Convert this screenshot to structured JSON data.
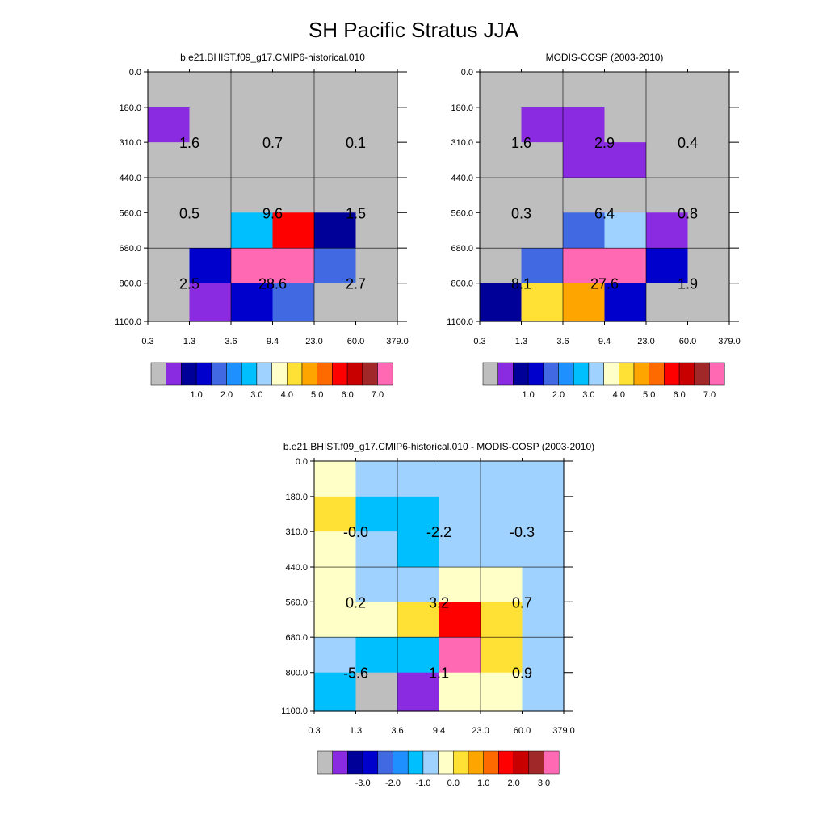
{
  "figure_title": "SH Pacific Stratus JJA",
  "chart_data": [
    {
      "type": "heatmap",
      "title": "b.e21.BHIST.f09_g17.CMIP6-historical.010",
      "x_ticks": [
        "0.3",
        "1.3",
        "3.6",
        "9.4",
        "23.0",
        "60.0",
        "379.0"
      ],
      "y_ticks": [
        "0.0",
        "180.0",
        "310.0",
        "440.0",
        "560.0",
        "680.0",
        "800.0",
        "1100.0"
      ],
      "cell_colors": [
        [
          "#BEBEBE",
          "#BEBEBE",
          "#BEBEBE",
          "#BEBEBE",
          "#BEBEBE",
          "#BEBEBE"
        ],
        [
          "#8A2BE2",
          "#BEBEBE",
          "#BEBEBE",
          "#BEBEBE",
          "#BEBEBE",
          "#BEBEBE"
        ],
        [
          "#BEBEBE",
          "#BEBEBE",
          "#BEBEBE",
          "#BEBEBE",
          "#BEBEBE",
          "#BEBEBE"
        ],
        [
          "#BEBEBE",
          "#BEBEBE",
          "#BEBEBE",
          "#BEBEBE",
          "#BEBEBE",
          "#BEBEBE"
        ],
        [
          "#BEBEBE",
          "#BEBEBE",
          "#00BFFF",
          "#FF0000",
          "#000099",
          "#BEBEBE"
        ],
        [
          "#BEBEBE",
          "#0000CD",
          "#FF69B4",
          "#FF69B4",
          "#4169E1",
          "#BEBEBE"
        ],
        [
          "#BEBEBE",
          "#8A2BE2",
          "#0000CD",
          "#4169E1",
          "#BEBEBE",
          "#BEBEBE"
        ]
      ],
      "box_values": [
        [
          "1.6",
          "0.7",
          "0.1"
        ],
        [
          "0.5",
          "9.6",
          "1.5"
        ],
        [
          "2.5",
          "28.6",
          "2.7"
        ]
      ],
      "colorbar": {
        "colors": [
          "#BEBEBE",
          "#8A2BE2",
          "#000099",
          "#0000CD",
          "#4169E1",
          "#1E90FF",
          "#00BFFF",
          "#A0D2FF",
          "#FFFFC8",
          "#FFE135",
          "#FFA500",
          "#FF6A00",
          "#FF0000",
          "#C80000",
          "#A02828",
          "#FF69B4"
        ],
        "labels": [
          "1.0",
          "2.0",
          "3.0",
          "4.0",
          "5.0",
          "6.0",
          "7.0"
        ]
      }
    },
    {
      "type": "heatmap",
      "title": "MODIS-COSP (2003-2010)",
      "x_ticks": [
        "0.3",
        "1.3",
        "3.6",
        "9.4",
        "23.0",
        "60.0",
        "379.0"
      ],
      "y_ticks": [
        "0.0",
        "180.0",
        "310.0",
        "440.0",
        "560.0",
        "680.0",
        "800.0",
        "1100.0"
      ],
      "cell_colors": [
        [
          "#BEBEBE",
          "#BEBEBE",
          "#BEBEBE",
          "#BEBEBE",
          "#BEBEBE",
          "#BEBEBE"
        ],
        [
          "#BEBEBE",
          "#8A2BE2",
          "#8A2BE2",
          "#BEBEBE",
          "#BEBEBE",
          "#BEBEBE"
        ],
        [
          "#BEBEBE",
          "#BEBEBE",
          "#8A2BE2",
          "#8A2BE2",
          "#BEBEBE",
          "#BEBEBE"
        ],
        [
          "#BEBEBE",
          "#BEBEBE",
          "#BEBEBE",
          "#BEBEBE",
          "#BEBEBE",
          "#BEBEBE"
        ],
        [
          "#BEBEBE",
          "#BEBEBE",
          "#4169E1",
          "#A0D2FF",
          "#8A2BE2",
          "#BEBEBE"
        ],
        [
          "#BEBEBE",
          "#4169E1",
          "#FF69B4",
          "#FF69B4",
          "#0000CD",
          "#BEBEBE"
        ],
        [
          "#000099",
          "#FFE135",
          "#FFA500",
          "#0000CD",
          "#BEBEBE",
          "#BEBEBE"
        ]
      ],
      "box_values": [
        [
          "1.6",
          "2.9",
          "0.4"
        ],
        [
          "0.3",
          "6.4",
          "0.8"
        ],
        [
          "8.1",
          "27.6",
          "1.9"
        ]
      ],
      "colorbar": {
        "colors": [
          "#BEBEBE",
          "#8A2BE2",
          "#000099",
          "#0000CD",
          "#4169E1",
          "#1E90FF",
          "#00BFFF",
          "#A0D2FF",
          "#FFFFC8",
          "#FFE135",
          "#FFA500",
          "#FF6A00",
          "#FF0000",
          "#C80000",
          "#A02828",
          "#FF69B4"
        ],
        "labels": [
          "1.0",
          "2.0",
          "3.0",
          "4.0",
          "5.0",
          "6.0",
          "7.0"
        ]
      }
    },
    {
      "type": "heatmap",
      "title": "b.e21.BHIST.f09_g17.CMIP6-historical.010 - MODIS-COSP (2003-2010)",
      "x_ticks": [
        "0.3",
        "1.3",
        "3.6",
        "9.4",
        "23.0",
        "60.0",
        "379.0"
      ],
      "y_ticks": [
        "0.0",
        "180.0",
        "310.0",
        "440.0",
        "560.0",
        "680.0",
        "800.0",
        "1100.0"
      ],
      "cell_colors": [
        [
          "#FFFFC8",
          "#A0D2FF",
          "#A0D2FF",
          "#A0D2FF",
          "#A0D2FF",
          "#A0D2FF"
        ],
        [
          "#FFE135",
          "#00BFFF",
          "#00BFFF",
          "#A0D2FF",
          "#A0D2FF",
          "#A0D2FF"
        ],
        [
          "#FFFFC8",
          "#A0D2FF",
          "#00BFFF",
          "#A0D2FF",
          "#A0D2FF",
          "#A0D2FF"
        ],
        [
          "#FFFFC8",
          "#A0D2FF",
          "#A0D2FF",
          "#FFFFC8",
          "#FFFFC8",
          "#A0D2FF"
        ],
        [
          "#FFFFC8",
          "#FFFFC8",
          "#FFE135",
          "#FF0000",
          "#FFE135",
          "#A0D2FF"
        ],
        [
          "#A0D2FF",
          "#00BFFF",
          "#00BFFF",
          "#FF69B4",
          "#FFE135",
          "#A0D2FF"
        ],
        [
          "#00BFFF",
          "#BEBEBE",
          "#8A2BE2",
          "#FFFFC8",
          "#FFFFC8",
          "#A0D2FF"
        ]
      ],
      "box_values": [
        [
          "-0.0",
          "-2.2",
          "-0.3"
        ],
        [
          "0.2",
          "3.2",
          "0.7"
        ],
        [
          "-5.6",
          "1.1",
          "0.9"
        ]
      ],
      "colorbar": {
        "colors": [
          "#BEBEBE",
          "#8A2BE2",
          "#000099",
          "#0000CD",
          "#4169E1",
          "#1E90FF",
          "#00BFFF",
          "#A0D2FF",
          "#FFFFC8",
          "#FFE135",
          "#FFA500",
          "#FF6A00",
          "#FF0000",
          "#C80000",
          "#A02828",
          "#FF69B4"
        ],
        "labels": [
          "-3.0",
          "-2.0",
          "-1.0",
          "0.0",
          "1.0",
          "2.0",
          "3.0"
        ]
      }
    }
  ]
}
